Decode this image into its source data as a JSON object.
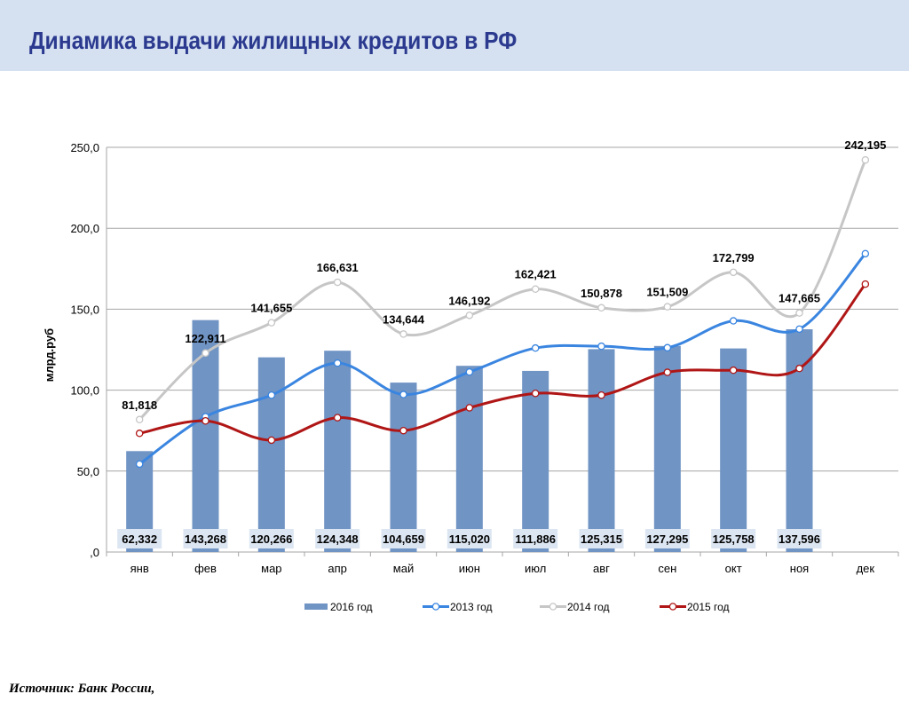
{
  "header": {
    "title": "Динамика выдачи жилищных кредитов в РФ"
  },
  "footer": {
    "source": "Источник: Банк России,"
  },
  "colors": {
    "header_bg": "#d5e1f1",
    "title": "#2b3a8f",
    "bar": "#7094c4",
    "bar_label_bg": "#dce6f2",
    "s2013": "#3a85e0",
    "s2014": "#c6c6c6",
    "s2015": "#b01616"
  },
  "chart_data": {
    "type": "bar+line",
    "title": "",
    "xlabel": "",
    "ylabel": "млрд.руб",
    "ylim": [
      0,
      250
    ],
    "yticks": [
      0,
      50,
      100,
      150,
      200,
      250
    ],
    "ytick_labels": [
      ",0",
      "50,0",
      "100,0",
      "150,0",
      "200,0",
      "250,0"
    ],
    "grid": "horizontal",
    "legend": "bottom",
    "categories": [
      "янв",
      "фев",
      "мар",
      "апр",
      "май",
      "июн",
      "июл",
      "авг",
      "сен",
      "окт",
      "ноя",
      "дек"
    ],
    "series": [
      {
        "name": "2016 год",
        "kind": "bar",
        "color": "#7094c4",
        "values": [
          62.332,
          143.268,
          120.266,
          124.348,
          104.659,
          115.02,
          111.886,
          125.315,
          127.295,
          125.758,
          137.596,
          null
        ],
        "labels": [
          "62,332",
          "143,268",
          "120,266",
          "124,348",
          "104,659",
          "115,020",
          "111,886",
          "125,315",
          "127,295",
          "125,758",
          "137,596",
          ""
        ]
      },
      {
        "name": "2013 год",
        "kind": "line",
        "color": "#3a85e0",
        "values": [
          54.3,
          83.6,
          96.9,
          116.7,
          97.3,
          111.2,
          126.0,
          127.1,
          126.2,
          142.8,
          137.7,
          184.3
        ]
      },
      {
        "name": "2014 год",
        "kind": "line",
        "color": "#c6c6c6",
        "values": [
          81.818,
          122.911,
          141.655,
          166.631,
          134.644,
          146.192,
          162.421,
          150.878,
          151.509,
          172.799,
          147.665,
          242.195
        ],
        "labels": [
          "81,818",
          "122,911",
          "141,655",
          "166,631",
          "134,644",
          "146,192",
          "162,421",
          "150,878",
          "151,509",
          "172,799",
          "147,665",
          "242,195"
        ]
      },
      {
        "name": "2015 год",
        "kind": "line",
        "color": "#b01616",
        "values": [
          73.3,
          81.0,
          69.1,
          83.0,
          75.0,
          89.1,
          98.0,
          96.9,
          111.0,
          112.3,
          113.4,
          165.5
        ]
      }
    ]
  }
}
